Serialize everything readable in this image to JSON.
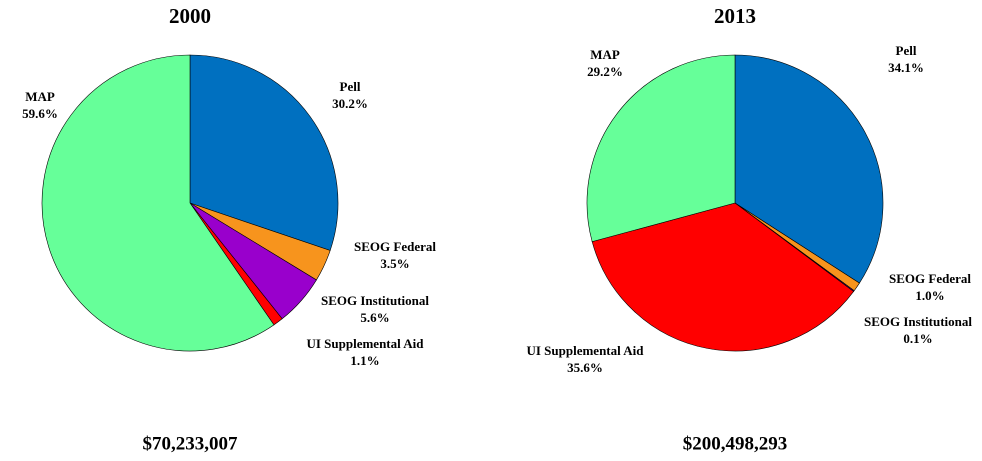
{
  "chart_data": [
    {
      "type": "pie",
      "title": "2000",
      "total": "$70,233,007",
      "categories": [
        "Pell",
        "SEOG Federal",
        "SEOG Institutional",
        "UI Supplemental Aid",
        "MAP"
      ],
      "values": [
        30.2,
        3.5,
        5.6,
        1.1,
        59.6
      ],
      "value_labels": [
        "30.2%",
        "3.5%",
        "5.6%",
        "1.1%",
        "59.6%"
      ],
      "colors": [
        "#0070c0",
        "#f7941d",
        "#9900cc",
        "#ff0000",
        "#66ff99"
      ]
    },
    {
      "type": "pie",
      "title": "2013",
      "total": "$200,498,293",
      "categories": [
        "Pell",
        "SEOG Federal",
        "SEOG Institutional",
        "UI Supplemental Aid",
        "MAP"
      ],
      "values": [
        34.1,
        1.0,
        0.1,
        35.6,
        29.2
      ],
      "value_labels": [
        "34.1%",
        "1.0%",
        "0.1%",
        "35.6%",
        "29.2%"
      ],
      "colors": [
        "#0070c0",
        "#f7941d",
        "#9900cc",
        "#ff0000",
        "#66ff99"
      ]
    }
  ]
}
